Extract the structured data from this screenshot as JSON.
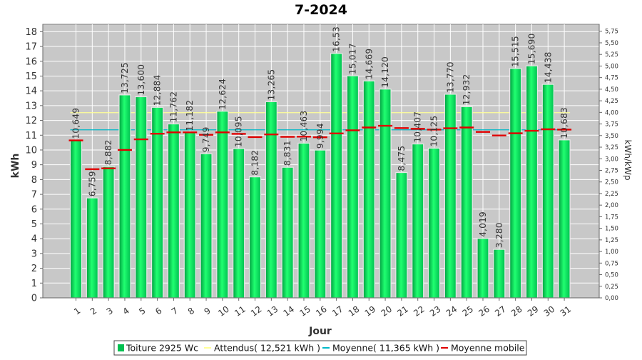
{
  "chart_data": {
    "type": "bar",
    "title": "7-2024",
    "xlabel": "Jour",
    "ylabel": "kWh",
    "y2label": "kWh/kWp",
    "ylim": [
      0,
      18.5
    ],
    "y2lim": [
      0,
      5.9
    ],
    "categories": [
      "1",
      "2",
      "3",
      "4",
      "5",
      "6",
      "7",
      "8",
      "9",
      "10",
      "11",
      "12",
      "13",
      "14",
      "15",
      "16",
      "17",
      "18",
      "19",
      "20",
      "21",
      "22",
      "23",
      "24",
      "25",
      "26",
      "27",
      "28",
      "29",
      "30",
      "31"
    ],
    "yticks": [
      "0",
      "1",
      "2",
      "3",
      "4",
      "5",
      "6",
      "7",
      "8",
      "9",
      "10",
      "11",
      "12",
      "13",
      "14",
      "15",
      "16",
      "17",
      "18"
    ],
    "y2ticks": [
      "0,00",
      "0,25",
      "0,50",
      "0,75",
      "1,00",
      "1,25",
      "1,50",
      "1,75",
      "2,00",
      "2,25",
      "2,50",
      "2,75",
      "3,00",
      "3,25",
      "3,50",
      "3,75",
      "4,00",
      "4,25",
      "4,50",
      "4,75",
      "5,00",
      "5,25",
      "5,50",
      "5,75"
    ],
    "series": [
      {
        "name": "Toiture 2925 Wc",
        "values": [
          10.649,
          6.759,
          8.882,
          13.725,
          13.6,
          12.884,
          11.762,
          11.182,
          9.749,
          12.624,
          10.095,
          8.182,
          13.265,
          8.831,
          10.463,
          9.994,
          16.53,
          15.017,
          14.669,
          14.12,
          8.475,
          10.407,
          10.125,
          13.77,
          12.932,
          4.019,
          3.28,
          15.515,
          15.69,
          14.438,
          10.683
        ],
        "labels": [
          "10,649",
          "6,759",
          "8,882",
          "13,725",
          "13,600",
          "12,884",
          "11,762",
          "11,182",
          "9,749",
          "12,624",
          "10,095",
          "8,182",
          "13,265",
          "8,831",
          "10,463",
          "9,994",
          "16,53",
          "15,017",
          "14,669",
          "14,120",
          "8,475",
          "10,407",
          "10,125",
          "13,770",
          "12,932",
          "4,019",
          "3,280",
          "15,515",
          "15,690",
          "14,438",
          "10,683"
        ],
        "color": "#00d050"
      },
      {
        "name": "Moyenne mobile",
        "values": [
          10.65,
          8.7,
          8.76,
          10.0,
          10.72,
          11.1,
          11.19,
          11.19,
          11.03,
          11.19,
          11.09,
          10.87,
          11.05,
          10.89,
          10.9,
          10.86,
          11.12,
          11.33,
          11.52,
          11.64,
          11.48,
          11.43,
          11.38,
          11.47,
          11.52,
          11.22,
          10.98,
          11.13,
          11.3,
          11.4,
          11.38
        ],
        "color": "#e00000"
      }
    ],
    "reference_lines": [
      {
        "name": "Attendus( 12,521 kWh )",
        "value": 12.521,
        "color": "#ffff99"
      },
      {
        "name": "Moyenne( 11,365 kWh )",
        "value": 11.365,
        "color": "#00b8c8"
      }
    ],
    "legend": [
      {
        "label": "Toiture 2925 Wc",
        "color": "#00c050",
        "kind": "box"
      },
      {
        "label": "Attendus( 12,521 kWh )",
        "color": "#ffff99",
        "kind": "line"
      },
      {
        "label": "Moyenne( 11,365 kWh )",
        "color": "#00b8c8",
        "kind": "line"
      },
      {
        "label": "Moyenne mobile",
        "color": "#e00000",
        "kind": "line"
      }
    ],
    "legend_position": "bottom",
    "grid": true,
    "plot_background": "#c8c8c8"
  }
}
